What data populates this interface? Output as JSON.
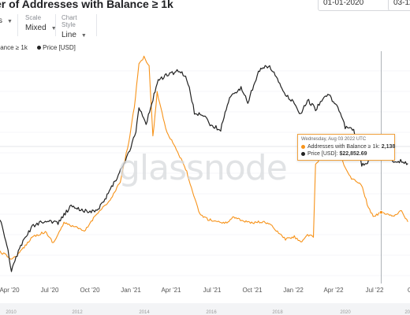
{
  "header": {
    "title": "er of Addresses with Balance ≥ 1k",
    "date_from": "01-01-2020",
    "date_to": "03-12-"
  },
  "controls": [
    {
      "label": "",
      "value": "s"
    },
    {
      "label": "Scale",
      "value": "Mixed"
    },
    {
      "label": "Chart Style",
      "value": "Line"
    }
  ],
  "legend": [
    {
      "label": "alance ≥ 1k",
      "color": "#f7931a"
    },
    {
      "label": "Price [USD]",
      "color": "#222222"
    }
  ],
  "watermark": "glassnode",
  "tooltip": {
    "date": "Wednesday, Aug 03 2022 UTC",
    "rows": [
      {
        "label": "Addresses with Balance ≥ 1k:",
        "value": "2,138",
        "color": "#f7931a"
      },
      {
        "label": "Price [USD]:",
        "value": "$22,852.69",
        "color": "#222222"
      }
    ]
  },
  "navigator_labels": [
    "2010",
    "2012",
    "2014",
    "2016",
    "2018",
    "2020",
    "2022"
  ],
  "colors": {
    "addresses": "#f7931a",
    "price": "#222222",
    "crosshair": "#9aa0a6",
    "grid": "#eceef1"
  },
  "chart_data": {
    "type": "line",
    "x_axis": {
      "ticks": [
        "Apr '20",
        "Jul '20",
        "Oct '20",
        "Jan '21",
        "Apr '21",
        "Jul '21",
        "Oct '21",
        "Jan '22",
        "Apr '22",
        "Jul '22",
        "O"
      ],
      "range": [
        "2020-02-15",
        "2022-10-10"
      ]
    },
    "crosshair_x": "2022-08-03",
    "grid": true,
    "legend_position": "top-left",
    "series": [
      {
        "name": "Addresses with Balance ≥ 1k",
        "color": "#f7931a",
        "points": [
          [
            "2020-02-15",
            1980
          ],
          [
            "2020-03-15",
            1950
          ],
          [
            "2020-04-01",
            1975
          ],
          [
            "2020-05-01",
            2040
          ],
          [
            "2020-06-01",
            2060
          ],
          [
            "2020-06-20",
            2015
          ],
          [
            "2020-07-15",
            2095
          ],
          [
            "2020-08-10",
            2080
          ],
          [
            "2020-09-01",
            2060
          ],
          [
            "2020-10-01",
            2135
          ],
          [
            "2020-11-01",
            2185
          ],
          [
            "2020-11-25",
            2260
          ],
          [
            "2020-12-15",
            2420
          ],
          [
            "2020-12-28",
            2560
          ],
          [
            "2021-01-08",
            2730
          ],
          [
            "2021-01-20",
            2760
          ],
          [
            "2021-02-01",
            2725
          ],
          [
            "2021-02-10",
            2440
          ],
          [
            "2021-02-20",
            2620
          ],
          [
            "2021-03-01",
            2555
          ],
          [
            "2021-03-15",
            2460
          ],
          [
            "2021-04-01",
            2410
          ],
          [
            "2021-04-15",
            2360
          ],
          [
            "2021-05-01",
            2300
          ],
          [
            "2021-05-15",
            2215
          ],
          [
            "2021-06-01",
            2130
          ],
          [
            "2021-06-20",
            2110
          ],
          [
            "2021-07-15",
            2100
          ],
          [
            "2021-08-01",
            2095
          ],
          [
            "2021-08-20",
            2120
          ],
          [
            "2021-09-10",
            2105
          ],
          [
            "2021-10-01",
            2095
          ],
          [
            "2021-10-20",
            2100
          ],
          [
            "2021-11-10",
            2095
          ],
          [
            "2021-12-01",
            2060
          ],
          [
            "2021-12-20",
            2030
          ],
          [
            "2022-01-10",
            2040
          ],
          [
            "2022-01-25",
            2020
          ],
          [
            "2022-02-10",
            2045
          ],
          [
            "2022-02-24",
            2040
          ],
          [
            "2022-03-01",
            2330
          ],
          [
            "2022-03-20",
            2370
          ],
          [
            "2022-04-01",
            2380
          ],
          [
            "2022-04-10",
            2395
          ],
          [
            "2022-04-25",
            2370
          ],
          [
            "2022-05-10",
            2320
          ],
          [
            "2022-05-25",
            2270
          ],
          [
            "2022-06-10",
            2260
          ],
          [
            "2022-06-20",
            2240
          ],
          [
            "2022-07-01",
            2170
          ],
          [
            "2022-07-15",
            2120
          ],
          [
            "2022-08-03",
            2138
          ],
          [
            "2022-08-20",
            2130
          ],
          [
            "2022-09-05",
            2125
          ],
          [
            "2022-09-20",
            2145
          ],
          [
            "2022-10-05",
            2100
          ]
        ]
      },
      {
        "name": "Price [USD]",
        "color": "#222222",
        "points": [
          [
            "2020-02-15",
            9700
          ],
          [
            "2020-03-13",
            5000
          ],
          [
            "2020-04-01",
            6600
          ],
          [
            "2020-05-01",
            8800
          ],
          [
            "2020-06-01",
            9500
          ],
          [
            "2020-07-01",
            9200
          ],
          [
            "2020-08-01",
            11400
          ],
          [
            "2020-09-01",
            10800
          ],
          [
            "2020-10-01",
            10700
          ],
          [
            "2020-10-25",
            13000
          ],
          [
            "2020-11-15",
            16000
          ],
          [
            "2020-12-01",
            19000
          ],
          [
            "2020-12-17",
            22800
          ],
          [
            "2021-01-01",
            29000
          ],
          [
            "2021-01-08",
            40000
          ],
          [
            "2021-01-25",
            32000
          ],
          [
            "2021-02-10",
            44000
          ],
          [
            "2021-02-20",
            55000
          ],
          [
            "2021-03-13",
            60000
          ],
          [
            "2021-04-14",
            63500
          ],
          [
            "2021-05-01",
            57000
          ],
          [
            "2021-05-19",
            37000
          ],
          [
            "2021-06-10",
            36000
          ],
          [
            "2021-06-25",
            32000
          ],
          [
            "2021-07-20",
            30000
          ],
          [
            "2021-08-10",
            45000
          ],
          [
            "2021-09-06",
            51000
          ],
          [
            "2021-09-22",
            42000
          ],
          [
            "2021-10-20",
            64000
          ],
          [
            "2021-11-10",
            67500
          ],
          [
            "2021-12-01",
            57000
          ],
          [
            "2021-12-20",
            47000
          ],
          [
            "2022-01-10",
            42000
          ],
          [
            "2022-01-25",
            36000
          ],
          [
            "2022-02-10",
            44000
          ],
          [
            "2022-03-01",
            39000
          ],
          [
            "2022-03-30",
            47000
          ],
          [
            "2022-04-20",
            41000
          ],
          [
            "2022-05-10",
            31000
          ],
          [
            "2022-05-30",
            30000
          ],
          [
            "2022-06-18",
            19000
          ],
          [
            "2022-07-10",
            20500
          ],
          [
            "2022-07-28",
            23800
          ],
          [
            "2022-08-03",
            22852.69
          ],
          [
            "2022-08-15",
            24200
          ],
          [
            "2022-08-30",
            20000
          ],
          [
            "2022-09-15",
            20200
          ],
          [
            "2022-10-05",
            19600
          ]
        ]
      }
    ]
  }
}
